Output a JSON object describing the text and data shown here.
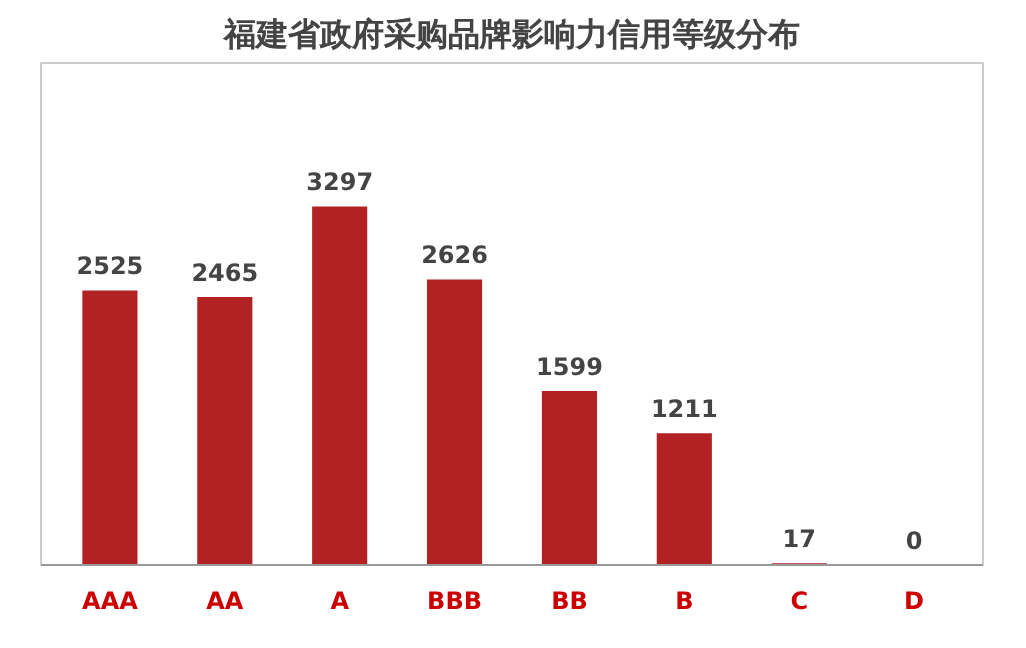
{
  "chart_data": {
    "type": "bar",
    "title": "福建省政府采购品牌影响力信用等级分布",
    "categories": [
      "AAA",
      "AA",
      "A",
      "BBB",
      "BB",
      "B",
      "C",
      "D"
    ],
    "values": [
      2525,
      2465,
      3297,
      2626,
      1599,
      1211,
      17,
      0
    ],
    "color": "#b22222",
    "data_labels": true,
    "grid": false,
    "tick_labels": "x"
  }
}
